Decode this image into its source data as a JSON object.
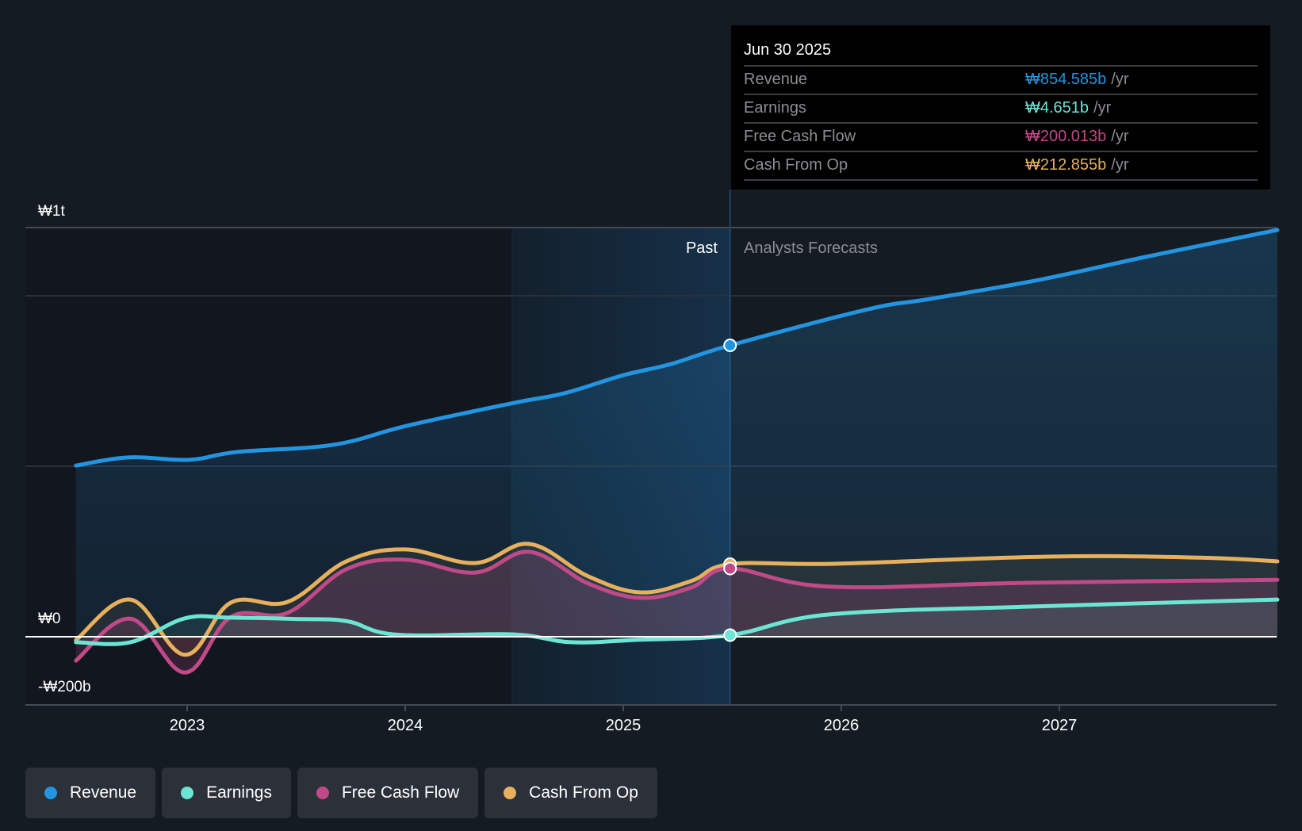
{
  "tooltip": {
    "date": "Jun 30 2025",
    "rows": [
      {
        "name": "Revenue",
        "value": "₩854.585b",
        "unit": "/yr",
        "color": "#2394df"
      },
      {
        "name": "Earnings",
        "value": "₩4.651b",
        "unit": "/yr",
        "color": "#6ce5d5"
      },
      {
        "name": "Free Cash Flow",
        "value": "₩200.013b",
        "unit": "/yr",
        "color": "#c04a87"
      },
      {
        "name": "Cash From Op",
        "value": "₩212.855b",
        "unit": "/yr",
        "color": "#e6b05e"
      }
    ]
  },
  "legend": [
    {
      "label": "Revenue",
      "color": "#2394df"
    },
    {
      "label": "Earnings",
      "color": "#6ce5d5"
    },
    {
      "label": "Free Cash Flow",
      "color": "#c04a87"
    },
    {
      "label": "Cash From Op",
      "color": "#e6b05e"
    }
  ],
  "chart_data": {
    "type": "line",
    "title": "",
    "xlabel": "",
    "ylabel": "",
    "units": "KRW billions",
    "xlim": [
      2022.49,
      2028.0
    ],
    "ylim": [
      -200,
      1200
    ],
    "y_gridlines": [
      -200,
      0,
      500,
      1000,
      1200
    ],
    "y_tick_labels": [
      {
        "label": "₩1t",
        "value": 1200
      },
      {
        "label": "₩0",
        "value": 0
      },
      {
        "label": "-₩200b",
        "value": -200
      }
    ],
    "x_ticks": [
      2023,
      2024,
      2025,
      2026,
      2027
    ],
    "x_tick_labels": [
      "2023",
      "2024",
      "2025",
      "2026",
      "2027"
    ],
    "past_band_start": 2024.49,
    "divider_x": 2025.49,
    "region_labels": {
      "past": "Past",
      "forecast": "Analysts Forecasts"
    },
    "highlight_x": 2025.49,
    "grid": true,
    "legend_position": "bottom-left",
    "series": [
      {
        "name": "Revenue",
        "color": "#2394df",
        "x": [
          2022.49,
          2022.73,
          2023.01,
          2023.23,
          2023.67,
          2024.01,
          2024.5,
          2024.73,
          2025.0,
          2025.22,
          2025.49,
          2026.12,
          2026.41,
          2026.91,
          2027.41,
          2028.0
        ],
        "values": [
          502,
          526,
          519,
          542,
          563,
          619,
          686,
          714,
          767,
          800,
          854.585,
          960,
          991,
          1047,
          1116,
          1193
        ],
        "highlight_value": 854.585
      },
      {
        "name": "Earnings",
        "color": "#6ce5d5",
        "x": [
          2022.49,
          2022.74,
          2022.99,
          2023.2,
          2023.5,
          2023.73,
          2023.96,
          2024.49,
          2024.76,
          2025.07,
          2025.49,
          2025.94,
          2026.85,
          2028.0
        ],
        "values": [
          -16,
          -16,
          54,
          56,
          52,
          46,
          6,
          7,
          -16,
          -9,
          4.651,
          65,
          88,
          109
        ],
        "highlight_value": 4.651
      },
      {
        "name": "Free Cash Flow",
        "color": "#c04a87",
        "x": [
          2022.49,
          2022.74,
          2022.99,
          2023.2,
          2023.46,
          2023.73,
          2024.0,
          2024.32,
          2024.57,
          2024.84,
          2025.08,
          2025.31,
          2025.49,
          2025.94,
          2026.85,
          2028.0
        ],
        "values": [
          -70,
          53,
          -105,
          58,
          70,
          198,
          226,
          188,
          249,
          156,
          114,
          144,
          200.013,
          147,
          158,
          167
        ],
        "highlight_value": 200.013
      },
      {
        "name": "Cash From Op",
        "color": "#e6b05e",
        "x": [
          2022.49,
          2022.74,
          2022.99,
          2023.2,
          2023.46,
          2023.73,
          2024.0,
          2024.32,
          2024.57,
          2024.84,
          2025.08,
          2025.31,
          2025.49,
          2025.97,
          2026.95,
          2027.64,
          2028.0
        ],
        "values": [
          -10,
          109,
          -53,
          100,
          102,
          221,
          256,
          216,
          272,
          177,
          130,
          163,
          212.855,
          214,
          235,
          232,
          221
        ],
        "highlight_value": 212.855
      }
    ]
  }
}
